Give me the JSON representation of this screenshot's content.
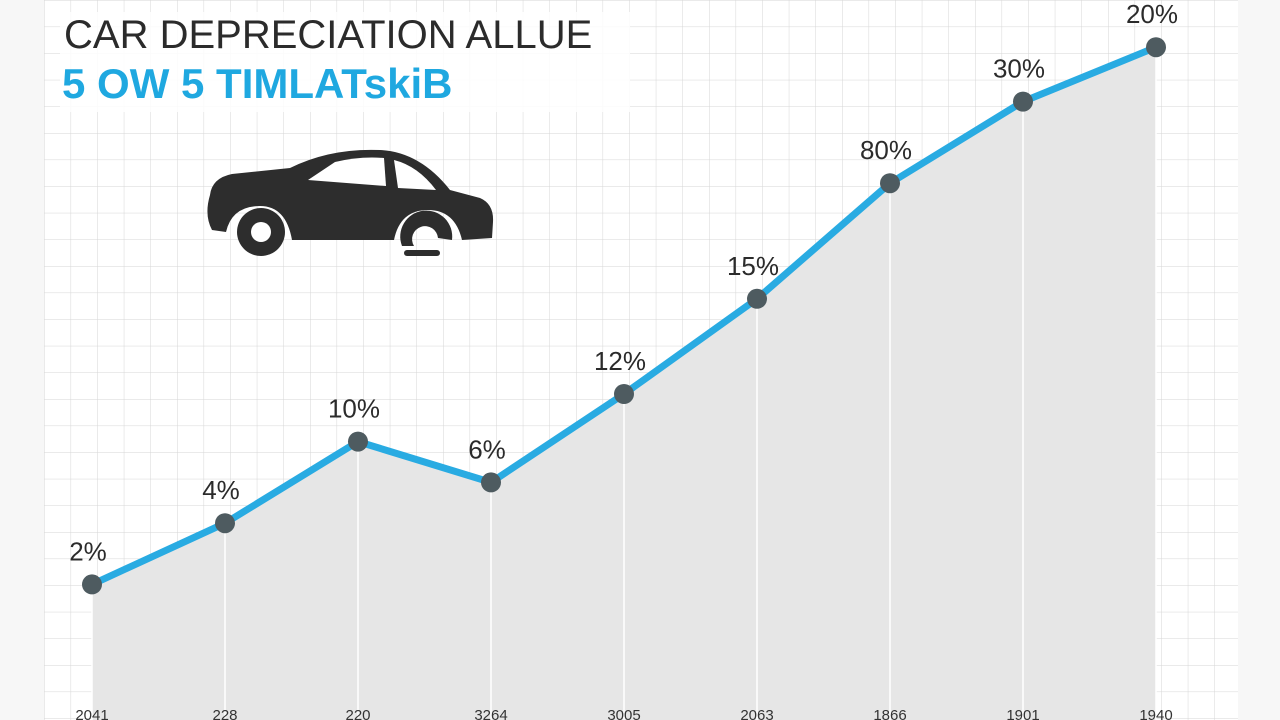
{
  "chart_data": {
    "type": "line",
    "title": "CAR DEPRECIATION ALLUE",
    "subtitle": "5 OW 5 TIMLATskiB",
    "categories": [
      "2041",
      "228",
      "220",
      "3264",
      "3005",
      "2063",
      "1866",
      "1901",
      "1940"
    ],
    "values": [
      17,
      26,
      38,
      32,
      45,
      59,
      76,
      88,
      96
    ],
    "annotations": [
      "2%",
      "4%",
      "10%",
      "6%",
      "12%",
      "15%",
      "80%",
      "30%",
      "20%"
    ],
    "ylim": [
      0,
      100
    ],
    "color": "#29abe2",
    "marker_color": "#4e5b60",
    "area_color": "#e6e6e6",
    "grid": true
  }
}
